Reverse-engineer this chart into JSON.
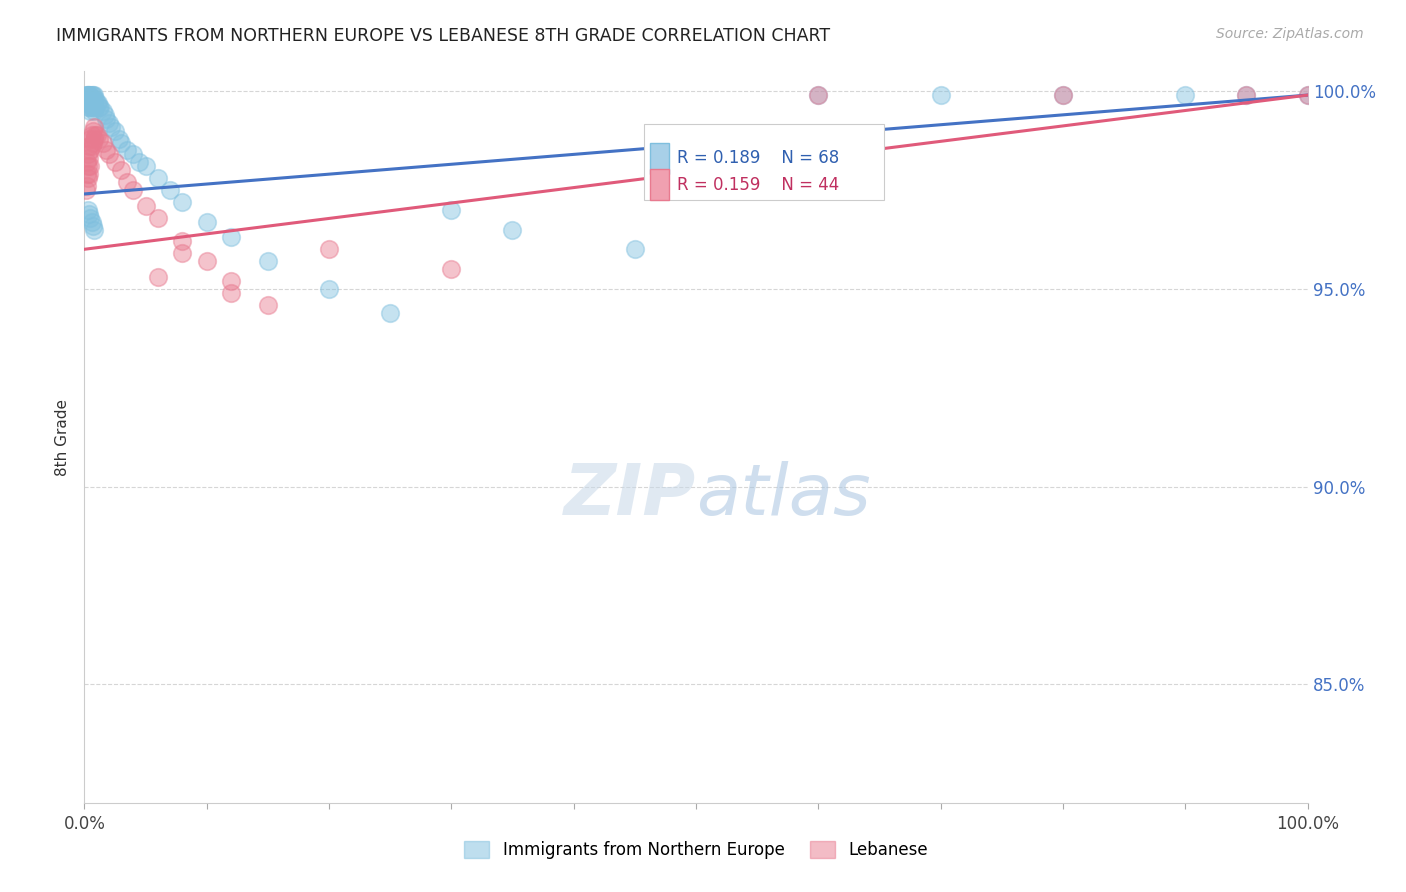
{
  "title": "IMMIGRANTS FROM NORTHERN EUROPE VS LEBANESE 8TH GRADE CORRELATION CHART",
  "source": "Source: ZipAtlas.com",
  "ylabel": "8th Grade",
  "legend_blue_label": "Immigrants from Northern Europe",
  "legend_pink_label": "Lebanese",
  "legend_r_blue": "R = 0.189",
  "legend_n_blue": "N = 68",
  "legend_r_pink": "R = 0.159",
  "legend_n_pink": "N = 44",
  "blue_color": "#7fbfde",
  "pink_color": "#e87a8f",
  "blue_line_color": "#4472c4",
  "pink_line_color": "#e05a7a",
  "blue_legend_fill": "#a8d0e8",
  "pink_legend_fill": "#f0a0b0",
  "watermark_zip": "ZIP",
  "watermark_atlas": "atlas",
  "xlim": [
    0.0,
    1.0
  ],
  "ylim": [
    0.82,
    1.005
  ],
  "yticks": [
    0.85,
    0.9,
    0.95,
    1.0
  ],
  "blue_x": [
    0.001,
    0.001,
    0.002,
    0.002,
    0.002,
    0.003,
    0.003,
    0.003,
    0.003,
    0.003,
    0.004,
    0.004,
    0.004,
    0.004,
    0.005,
    0.005,
    0.005,
    0.005,
    0.006,
    0.006,
    0.006,
    0.007,
    0.007,
    0.007,
    0.008,
    0.008,
    0.008,
    0.009,
    0.009,
    0.01,
    0.011,
    0.012,
    0.013,
    0.015,
    0.017,
    0.018,
    0.02,
    0.022,
    0.025,
    0.028,
    0.03,
    0.035,
    0.04,
    0.045,
    0.05,
    0.06,
    0.07,
    0.08,
    0.1,
    0.12,
    0.15,
    0.2,
    0.25,
    0.3,
    0.35,
    0.45,
    0.6,
    0.7,
    0.8,
    0.9,
    0.95,
    1.0,
    0.003,
    0.004,
    0.005,
    0.006,
    0.007,
    0.008
  ],
  "blue_y": [
    0.999,
    0.998,
    0.999,
    0.998,
    0.997,
    0.999,
    0.999,
    0.998,
    0.997,
    0.996,
    0.999,
    0.998,
    0.997,
    0.996,
    0.999,
    0.998,
    0.997,
    0.995,
    0.999,
    0.998,
    0.996,
    0.999,
    0.998,
    0.996,
    0.999,
    0.997,
    0.995,
    0.998,
    0.996,
    0.997,
    0.997,
    0.996,
    0.996,
    0.995,
    0.994,
    0.993,
    0.992,
    0.991,
    0.99,
    0.988,
    0.987,
    0.985,
    0.984,
    0.982,
    0.981,
    0.978,
    0.975,
    0.972,
    0.967,
    0.963,
    0.957,
    0.95,
    0.944,
    0.97,
    0.965,
    0.96,
    0.999,
    0.999,
    0.999,
    0.999,
    0.999,
    0.999,
    0.97,
    0.969,
    0.968,
    0.967,
    0.966,
    0.965
  ],
  "pink_x": [
    0.001,
    0.002,
    0.002,
    0.002,
    0.003,
    0.003,
    0.003,
    0.004,
    0.004,
    0.004,
    0.005,
    0.005,
    0.005,
    0.006,
    0.006,
    0.007,
    0.007,
    0.008,
    0.008,
    0.009,
    0.01,
    0.012,
    0.015,
    0.018,
    0.02,
    0.025,
    0.03,
    0.035,
    0.04,
    0.05,
    0.06,
    0.08,
    0.1,
    0.12,
    0.15,
    0.06,
    0.08,
    0.12,
    0.2,
    0.3,
    0.6,
    0.8,
    0.95,
    1.0
  ],
  "pink_y": [
    0.975,
    0.982,
    0.979,
    0.976,
    0.984,
    0.981,
    0.978,
    0.986,
    0.983,
    0.979,
    0.988,
    0.985,
    0.981,
    0.989,
    0.986,
    0.99,
    0.987,
    0.991,
    0.988,
    0.989,
    0.989,
    0.988,
    0.987,
    0.985,
    0.984,
    0.982,
    0.98,
    0.977,
    0.975,
    0.971,
    0.968,
    0.962,
    0.957,
    0.952,
    0.946,
    0.953,
    0.959,
    0.949,
    0.96,
    0.955,
    0.999,
    0.999,
    0.999,
    0.999
  ],
  "blue_line_x0": 0.0,
  "blue_line_y0": 0.974,
  "blue_line_x1": 1.0,
  "blue_line_y1": 0.999,
  "pink_line_x0": 0.0,
  "pink_line_y0": 0.96,
  "pink_line_x1": 1.0,
  "pink_line_y1": 0.999
}
